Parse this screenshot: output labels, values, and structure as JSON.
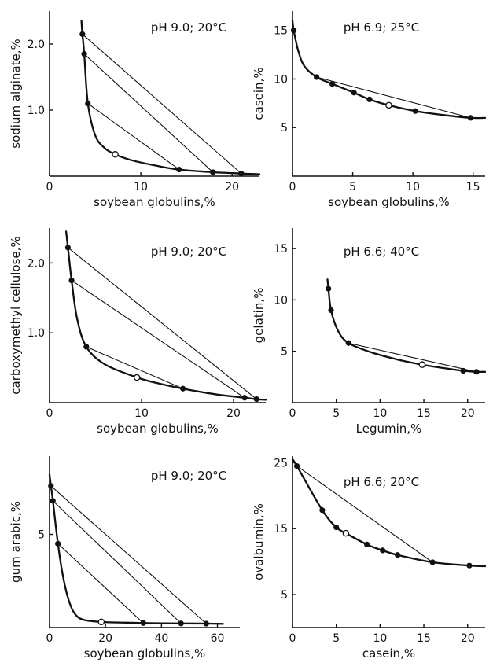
{
  "chart_data": [
    {
      "type": "line",
      "condition": "pH 9.0;  20°C",
      "xlabel": "soybean globulins,%",
      "ylabel": "sodium alginate,%",
      "xlim": [
        0,
        23
      ],
      "ylim": [
        0,
        2.5
      ],
      "xticks": [
        0,
        10,
        20
      ],
      "xtick_labels": [
        "0",
        "10",
        "20"
      ],
      "yticks": [
        1.0,
        2.0
      ],
      "ytick_labels": [
        "1.0",
        "2.0"
      ],
      "binodal": [
        [
          3.5,
          2.35
        ],
        [
          3.6,
          2.15
        ],
        [
          3.8,
          1.85
        ],
        [
          4.2,
          1.1
        ],
        [
          5.0,
          0.62
        ],
        [
          6.0,
          0.43
        ],
        [
          7.2,
          0.33
        ],
        [
          9.0,
          0.24
        ],
        [
          12.0,
          0.15
        ],
        [
          14.2,
          0.1
        ],
        [
          17.9,
          0.06
        ],
        [
          21.0,
          0.04
        ],
        [
          23.0,
          0.03
        ]
      ],
      "points": [
        [
          3.6,
          2.15
        ],
        [
          3.8,
          1.85
        ],
        [
          4.2,
          1.1
        ],
        [
          14.2,
          0.1
        ],
        [
          17.9,
          0.06
        ],
        [
          21.0,
          0.04
        ]
      ],
      "critical_point": [
        7.2,
        0.33
      ],
      "tie_lines": [
        [
          [
            3.6,
            2.15
          ],
          [
            21.0,
            0.04
          ]
        ],
        [
          [
            3.8,
            1.85
          ],
          [
            17.9,
            0.06
          ]
        ],
        [
          [
            4.2,
            1.1
          ],
          [
            14.2,
            0.1
          ]
        ]
      ]
    },
    {
      "type": "line",
      "condition": "pH 6.9; 25°C",
      "xlabel": "soybean globulins,%",
      "ylabel": "casein,%",
      "xlim": [
        0,
        16
      ],
      "ylim": [
        0,
        17
      ],
      "xticks": [
        0,
        5,
        10,
        15
      ],
      "xtick_labels": [
        "0",
        "5",
        "10",
        "15"
      ],
      "yticks": [
        5,
        10,
        15
      ],
      "ytick_labels": [
        "5",
        "10",
        "15"
      ],
      "binodal": [
        [
          0,
          16.0
        ],
        [
          0.1,
          15.0
        ],
        [
          0.5,
          12.8
        ],
        [
          1.0,
          11.3
        ],
        [
          2.0,
          10.2
        ],
        [
          3.3,
          9.5
        ],
        [
          5.1,
          8.6
        ],
        [
          6.4,
          7.9
        ],
        [
          8.0,
          7.3
        ],
        [
          10.2,
          6.7
        ],
        [
          12.5,
          6.3
        ],
        [
          14.8,
          6.0
        ],
        [
          16.0,
          6.0
        ]
      ],
      "points": [
        [
          0.1,
          15.0
        ],
        [
          2.0,
          10.2
        ],
        [
          3.3,
          9.5
        ],
        [
          5.1,
          8.6
        ],
        [
          6.4,
          7.9
        ],
        [
          10.2,
          6.7
        ],
        [
          14.8,
          6.0
        ]
      ],
      "critical_point": [
        8.0,
        7.3
      ],
      "tie_lines": [
        [
          [
            2.0,
            10.2
          ],
          [
            14.8,
            6.0
          ]
        ]
      ]
    },
    {
      "type": "line",
      "condition": "pH 9.0;  20°C",
      "xlabel": "soybean globulins,%",
      "ylabel": "carboxymethyl cellulose,%",
      "xlim": [
        0,
        23.5
      ],
      "ylim": [
        0,
        2.5
      ],
      "xticks": [
        0,
        10,
        20
      ],
      "xtick_labels": [
        "0",
        "10",
        "20"
      ],
      "yticks": [
        1.0,
        2.0
      ],
      "ytick_labels": [
        "1.0",
        "2.0"
      ],
      "binodal": [
        [
          1.8,
          2.45
        ],
        [
          2.0,
          2.22
        ],
        [
          2.4,
          1.75
        ],
        [
          3.0,
          1.2
        ],
        [
          4.0,
          0.8
        ],
        [
          6.0,
          0.55
        ],
        [
          9.5,
          0.36
        ],
        [
          12.0,
          0.27
        ],
        [
          14.5,
          0.2
        ],
        [
          18.0,
          0.12
        ],
        [
          21.2,
          0.07
        ],
        [
          22.5,
          0.05
        ],
        [
          23.5,
          0.04
        ]
      ],
      "points": [
        [
          2.0,
          2.22
        ],
        [
          2.4,
          1.75
        ],
        [
          4.0,
          0.8
        ],
        [
          14.5,
          0.2
        ],
        [
          21.2,
          0.07
        ],
        [
          22.5,
          0.05
        ]
      ],
      "critical_point": [
        9.5,
        0.36
      ],
      "tie_lines": [
        [
          [
            2.0,
            2.22
          ],
          [
            22.5,
            0.05
          ]
        ],
        [
          [
            2.4,
            1.75
          ],
          [
            21.2,
            0.07
          ]
        ],
        [
          [
            4.0,
            0.8
          ],
          [
            14.5,
            0.2
          ]
        ]
      ]
    },
    {
      "type": "line",
      "condition": "pH 6.6; 40°C",
      "xlabel": "Legumin,%",
      "ylabel": "gelatin,%",
      "xlim": [
        0,
        22
      ],
      "ylim": [
        0,
        17
      ],
      "xticks": [
        0,
        5,
        10,
        15,
        20
      ],
      "xtick_labels": [
        "0",
        "5",
        "10",
        "15",
        "20"
      ],
      "yticks": [
        5,
        10,
        15
      ],
      "ytick_labels": [
        "5",
        "10",
        "15"
      ],
      "binodal": [
        [
          4.0,
          12.0
        ],
        [
          4.1,
          11.1
        ],
        [
          4.4,
          9.0
        ],
        [
          5.2,
          7.0
        ],
        [
          6.4,
          5.8
        ],
        [
          9.0,
          4.9
        ],
        [
          12.0,
          4.2
        ],
        [
          14.8,
          3.7
        ],
        [
          17.0,
          3.4
        ],
        [
          19.5,
          3.1
        ],
        [
          21.0,
          3.0
        ],
        [
          22.0,
          3.0
        ]
      ],
      "points": [
        [
          4.1,
          11.1
        ],
        [
          4.4,
          9.0
        ],
        [
          6.4,
          5.8
        ],
        [
          19.5,
          3.1
        ],
        [
          21.0,
          3.0
        ]
      ],
      "critical_point": [
        14.8,
        3.7
      ],
      "tie_lines": [
        [
          [
            6.4,
            5.8
          ],
          [
            21.0,
            3.0
          ]
        ]
      ]
    },
    {
      "type": "line",
      "condition": "pH 9.0;  20°C",
      "xlabel": "soybean globulins,%",
      "ylabel": "gum arabic,%",
      "xlim": [
        0,
        68
      ],
      "ylim": [
        0,
        9.2
      ],
      "xticks": [
        0,
        20,
        40,
        60
      ],
      "xtick_labels": [
        "0",
        "20",
        "40",
        "60"
      ],
      "yticks": [
        5
      ],
      "ytick_labels": [
        "5"
      ],
      "binodal": [
        [
          0,
          8.2
        ],
        [
          0.5,
          7.6
        ],
        [
          1.2,
          6.8
        ],
        [
          3.0,
          4.5
        ],
        [
          5.0,
          2.6
        ],
        [
          7.0,
          1.4
        ],
        [
          9.0,
          0.75
        ],
        [
          12.0,
          0.42
        ],
        [
          18.5,
          0.3
        ],
        [
          25.0,
          0.27
        ],
        [
          33.5,
          0.24
        ],
        [
          47.0,
          0.22
        ],
        [
          56.0,
          0.21
        ],
        [
          62.0,
          0.2
        ]
      ],
      "points": [
        [
          0.5,
          7.6
        ],
        [
          1.2,
          6.8
        ],
        [
          3.0,
          4.5
        ],
        [
          33.5,
          0.24
        ],
        [
          47.0,
          0.22
        ],
        [
          56.0,
          0.21
        ]
      ],
      "critical_point": [
        18.5,
        0.3
      ],
      "tie_lines": [
        [
          [
            0.5,
            7.6
          ],
          [
            56.0,
            0.21
          ]
        ],
        [
          [
            1.2,
            6.8
          ],
          [
            47.0,
            0.22
          ]
        ],
        [
          [
            3.0,
            4.5
          ],
          [
            33.5,
            0.24
          ]
        ]
      ]
    },
    {
      "type": "line",
      "condition": "pH 6.6; 20°C",
      "xlabel": "casein,%",
      "ylabel": "ovalbumin,%",
      "xlim": [
        0,
        22
      ],
      "ylim": [
        0,
        26
      ],
      "xticks": [
        0,
        5,
        10,
        15,
        20
      ],
      "xtick_labels": [
        "0",
        "5",
        "10",
        "15",
        "20"
      ],
      "yticks": [
        5,
        15,
        25
      ],
      "ytick_labels": [
        "5",
        "15",
        "25"
      ],
      "binodal": [
        [
          0,
          25.5
        ],
        [
          0.5,
          24.5
        ],
        [
          3.4,
          17.8
        ],
        [
          5.0,
          15.2
        ],
        [
          6.1,
          14.3
        ],
        [
          8.5,
          12.6
        ],
        [
          10.3,
          11.7
        ],
        [
          12.0,
          11.0
        ],
        [
          16.0,
          9.9
        ],
        [
          20.2,
          9.4
        ],
        [
          22.0,
          9.3
        ]
      ],
      "points": [
        [
          0.5,
          24.5
        ],
        [
          3.4,
          17.8
        ],
        [
          5.0,
          15.2
        ],
        [
          8.5,
          12.6
        ],
        [
          10.3,
          11.7
        ],
        [
          12.0,
          11.0
        ],
        [
          16.0,
          9.9
        ],
        [
          20.2,
          9.4
        ]
      ],
      "critical_point": [
        6.1,
        14.3
      ],
      "tie_lines": [
        [
          [
            0.5,
            24.5
          ],
          [
            16.0,
            9.9
          ]
        ]
      ]
    }
  ]
}
